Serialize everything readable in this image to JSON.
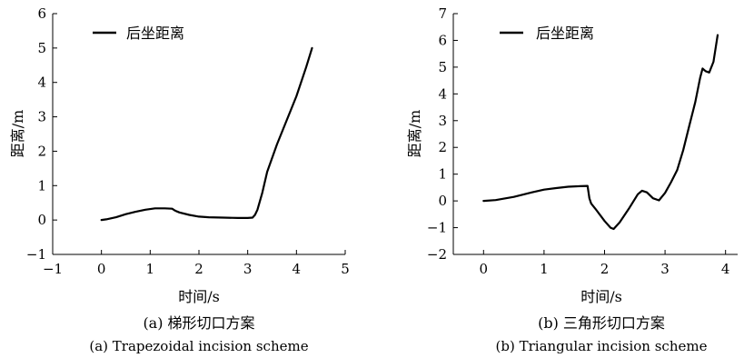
{
  "chart_data": [
    {
      "type": "line",
      "caption_zh": "(a) 梯形切口方案",
      "caption_en": "(a) Trapezoidal incision scheme",
      "xlabel": "时间/s",
      "ylabel": "距离/m",
      "xlim": [
        -1,
        5
      ],
      "ylim": [
        -1,
        6
      ],
      "xticks": [
        "−1",
        "0",
        "1",
        "2",
        "3",
        "4",
        "5"
      ],
      "yticks": [
        "−1",
        "0",
        "1",
        "2",
        "3",
        "4",
        "5",
        "6"
      ],
      "legend": "top-left",
      "grid": false,
      "series": [
        {
          "name": "后坐距离",
          "color": "#000000",
          "x": [
            0,
            0.1,
            0.3,
            0.5,
            0.7,
            0.9,
            1.1,
            1.3,
            1.45,
            1.5,
            1.55,
            1.6,
            1.8,
            2.0,
            2.2,
            2.5,
            2.8,
            3.0,
            3.1,
            3.15,
            3.2,
            3.3,
            3.4,
            3.6,
            3.8,
            4.0,
            4.2,
            4.32
          ],
          "values": [
            0,
            0.02,
            0.08,
            0.17,
            0.24,
            0.3,
            0.34,
            0.34,
            0.33,
            0.28,
            0.25,
            0.22,
            0.15,
            0.1,
            0.08,
            0.07,
            0.06,
            0.06,
            0.07,
            0.15,
            0.3,
            0.8,
            1.4,
            2.2,
            2.9,
            3.6,
            4.45,
            5.0
          ]
        }
      ]
    },
    {
      "type": "line",
      "caption_zh": "(b) 三角形切口方案",
      "caption_en": "(b) Triangular incision scheme",
      "xlabel": "时间/s",
      "ylabel": "距离/m",
      "xlim": [
        -0.5,
        4.2
      ],
      "ylim": [
        -2,
        7
      ],
      "xticks": [
        "0",
        "1",
        "2",
        "3",
        "4"
      ],
      "yticks": [
        "−2",
        "−1",
        "0",
        "1",
        "2",
        "3",
        "4",
        "5",
        "6",
        "7"
      ],
      "legend": "top-left",
      "grid": false,
      "series": [
        {
          "name": "后坐距离",
          "color": "#000000",
          "x": [
            0,
            0.2,
            0.5,
            0.8,
            1.0,
            1.2,
            1.4,
            1.6,
            1.72,
            1.75,
            1.78,
            1.85,
            2.0,
            2.1,
            2.15,
            2.25,
            2.4,
            2.55,
            2.62,
            2.7,
            2.8,
            2.9,
            3.0,
            3.1,
            3.2,
            3.3,
            3.4,
            3.5,
            3.58,
            3.62,
            3.67,
            3.73,
            3.8,
            3.87
          ],
          "values": [
            0,
            0.03,
            0.15,
            0.32,
            0.42,
            0.48,
            0.53,
            0.55,
            0.56,
            0.1,
            -0.1,
            -0.3,
            -0.75,
            -1.0,
            -1.05,
            -0.8,
            -0.3,
            0.25,
            0.38,
            0.32,
            0.1,
            0.02,
            0.3,
            0.7,
            1.15,
            1.9,
            2.8,
            3.7,
            4.6,
            4.95,
            4.85,
            4.8,
            5.2,
            6.2
          ]
        }
      ]
    }
  ]
}
